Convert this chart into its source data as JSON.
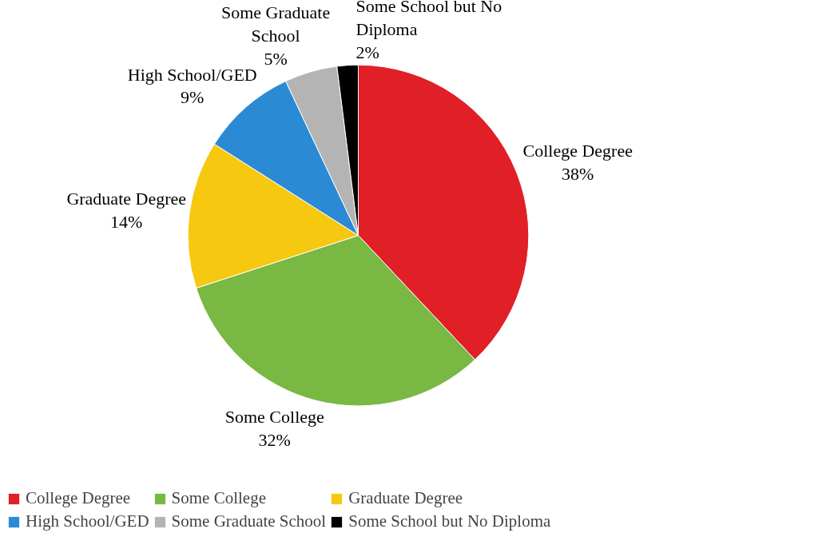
{
  "chart_data": {
    "type": "pie",
    "categories": [
      "College Degree",
      "Some College",
      "Graduate Degree",
      "High School/GED",
      "Some Graduate School",
      "Some School but No Diploma"
    ],
    "values": [
      38,
      32,
      14,
      9,
      5,
      2
    ],
    "value_labels": [
      "38%",
      "32%",
      "14%",
      "9%",
      "5%",
      "2%"
    ],
    "colors": [
      "#e01f26",
      "#78b843",
      "#f7c810",
      "#2a8ad4",
      "#b4b4b4",
      "#000000"
    ],
    "legend": "bottom"
  }
}
